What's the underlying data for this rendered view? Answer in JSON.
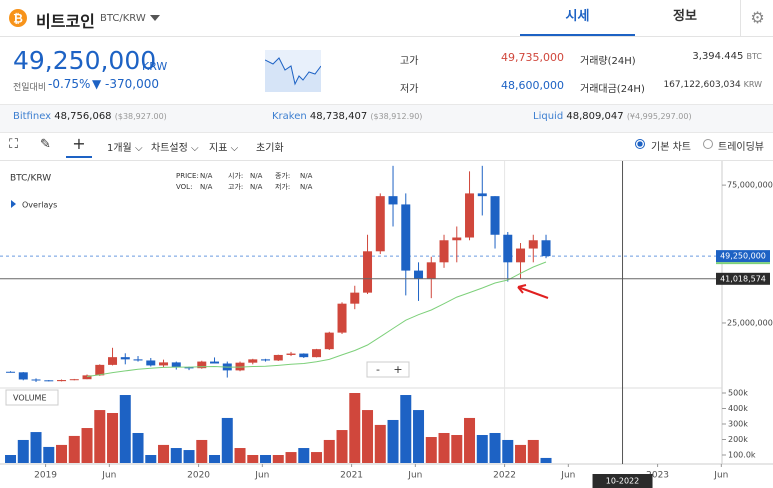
{
  "header": {
    "title": "비트코인",
    "pair": "BTC/KRW",
    "tabs": [
      "시세",
      "정보"
    ]
  },
  "price": {
    "value": "49,250,000",
    "unit": "KRW",
    "change_label": "전일대비",
    "change_pct": "-0.75%",
    "change_abs": "▼ -370,000"
  },
  "stats": [
    {
      "label": "고가",
      "value": "49,735,000"
    },
    {
      "label": "저가",
      "value": "48,600,000"
    },
    {
      "label": "거래량(24H)",
      "value": "3,394.445",
      "unit": "BTC"
    },
    {
      "label": "거래대금(24H)",
      "value": "167,122,603,034",
      "unit": "KRW"
    }
  ],
  "exchanges": [
    {
      "name": "Bitfinex",
      "price": "48,756,068",
      "alt": "($38,927.00)"
    },
    {
      "name": "Kraken",
      "price": "48,738,407",
      "alt": "($38,912.90)"
    },
    {
      "name": "Liquid",
      "price": "48,809,047",
      "alt": "(¥4,995,297.00)"
    }
  ],
  "toolbar": {
    "period": "1개월",
    "settings": "차트설정",
    "indicators": "지표",
    "reset": "초기화",
    "basic": "기본 차트",
    "tradingview": "트레이딩뷰"
  },
  "legend": {
    "symbol": "BTC/KRW",
    "overlays": "Overlays",
    "items": [
      "PRICE:",
      "N/A",
      "시가:",
      "N/A",
      "종가:",
      "N/A",
      "VOL:",
      "N/A",
      "고가:",
      "N/A",
      "저가:",
      "N/A"
    ],
    "volume": "VOLUME",
    "zoom": [
      "-",
      "+"
    ]
  },
  "chart_data": {
    "type": "candlestick",
    "up_color": "#d0473c",
    "down_color": "#1d62c4",
    "ma_color": "#7dd07a",
    "x": [
      "2018-10",
      "2018-11",
      "2018-12",
      "2019-01",
      "2019-02",
      "2019-03",
      "2019-04",
      "2019-05",
      "2019-06",
      "2019-07",
      "2019-08",
      "2019-09",
      "2019-10",
      "2019-11",
      "2019-12",
      "2020-01",
      "2020-02",
      "2020-03",
      "2020-04",
      "2020-05",
      "2020-06",
      "2020-07",
      "2020-08",
      "2020-09",
      "2020-10",
      "2020-11",
      "2020-12",
      "2021-01",
      "2021-02",
      "2021-03",
      "2021-04",
      "2021-05",
      "2021-06",
      "2021-07",
      "2021-08",
      "2021-09",
      "2021-10",
      "2021-11",
      "2021-12",
      "2022-01",
      "2022-02",
      "2022-03",
      "2022-04"
    ],
    "open": [
      7300000,
      7100000,
      4500000,
      4200000,
      3900000,
      4300000,
      4600000,
      6000000,
      9800000,
      12600000,
      11800000,
      11400000,
      9600000,
      10700000,
      8900000,
      8600000,
      11000000,
      10300000,
      7800000,
      10600000,
      11800000,
      11400000,
      13400000,
      13900000,
      12600000,
      15500000,
      21500000,
      32000000,
      36000000,
      51000000,
      71000000,
      68000000,
      44000000,
      41000000,
      47000000,
      55000000,
      56000000,
      72000000,
      71000000,
      57000000,
      47000000,
      52000000,
      55000000
    ],
    "high": [
      7500000,
      7200000,
      4900000,
      4300000,
      4500000,
      4700000,
      6300000,
      10000000,
      16000000,
      14000000,
      13000000,
      12300000,
      11700000,
      11000000,
      9200000,
      11300000,
      12500000,
      11000000,
      11000000,
      12000000,
      12000000,
      13500000,
      14500000,
      14000000,
      15600000,
      21800000,
      32500000,
      38500000,
      57000000,
      72000000,
      82000000,
      72000000,
      47000000,
      49000000,
      57000000,
      60000000,
      80000000,
      82000000,
      71000000,
      58000000,
      54000000,
      57000000,
      57000000
    ],
    "low": [
      7000000,
      4200000,
      3600000,
      3800000,
      3800000,
      4200000,
      4600000,
      5800000,
      9600000,
      10000000,
      11000000,
      9200000,
      8900000,
      8100000,
      7900000,
      8400000,
      10300000,
      5200000,
      7500000,
      10000000,
      11000000,
      11200000,
      13000000,
      12300000,
      12500000,
      15200000,
      21000000,
      30000000,
      35500000,
      50000000,
      60000000,
      35000000,
      33000000,
      34000000,
      45000000,
      47000000,
      55000000,
      64000000,
      52000000,
      40000000,
      41000000,
      47000000,
      48500000
    ],
    "close": [
      7100000,
      4500000,
      4200000,
      3900000,
      4300000,
      4600000,
      6000000,
      9800000,
      12600000,
      11800000,
      11400000,
      9600000,
      10700000,
      8900000,
      8600000,
      11000000,
      10300000,
      7800000,
      10600000,
      11800000,
      11400000,
      13400000,
      13900000,
      12600000,
      15500000,
      21500000,
      32000000,
      36000000,
      51000000,
      71000000,
      68000000,
      44000000,
      41000000,
      47000000,
      55000000,
      56000000,
      72000000,
      71000000,
      57000000,
      47000000,
      52000000,
      55000000,
      49250000
    ],
    "ma": [
      null,
      null,
      null,
      null,
      null,
      null,
      5600000,
      6200000,
      7000000,
      7600000,
      8200000,
      8600000,
      8900000,
      9000000,
      9000000,
      9100000,
      9200000,
      9000000,
      9000000,
      9200000,
      9300000,
      9600000,
      10000000,
      10300000,
      10900000,
      11800000,
      13400000,
      15000000,
      17000000,
      20000000,
      23000000,
      26000000,
      28000000,
      29700000,
      32000000,
      34400000,
      36000000,
      37700000,
      39500000,
      40600000,
      43000000,
      45300000,
      47100000
    ],
    "volume": [
      100000,
      197000,
      248000,
      152000,
      165000,
      223000,
      274000,
      390000,
      371000,
      487000,
      242000,
      100000,
      165000,
      145000,
      132000,
      197000,
      100000,
      339000,
      145000,
      100000,
      100000,
      100000,
      119000,
      145000,
      119000,
      197000,
      261000,
      500000,
      390000,
      294000,
      326000,
      487000,
      390000,
      216000,
      242000,
      229000,
      339000,
      229000,
      242000,
      197000,
      165000,
      197000,
      81000
    ],
    "ylim": [
      2500000,
      82300000
    ],
    "yticks": [
      {
        "value": 75000000,
        "label": "75,000,000"
      },
      {
        "value": 25000000,
        "label": "25,000,000"
      }
    ],
    "vlim": [
      0,
      500000
    ],
    "vticks": [
      {
        "value": 500000,
        "label": "500k"
      },
      {
        "value": 400000,
        "label": "400k"
      },
      {
        "value": 300000,
        "label": "300k"
      },
      {
        "value": 200000,
        "label": "200k"
      },
      {
        "value": 100000,
        "label": "100.0k"
      }
    ],
    "xticks": [
      {
        "value": "2019-01",
        "label": "2019"
      },
      {
        "value": "2019-06",
        "label": "Jun"
      },
      {
        "value": "2020-01",
        "label": "2020"
      },
      {
        "value": "2020-06",
        "label": "Jun"
      },
      {
        "value": "2021-01",
        "label": "2021"
      },
      {
        "value": "2021-06",
        "label": "Jun"
      },
      {
        "value": "2022-01",
        "label": "2022"
      },
      {
        "value": "2022-06",
        "label": "Jun"
      },
      {
        "value": "2023-01",
        "label": "2023"
      },
      {
        "value": "2023-06",
        "label": "Jun"
      }
    ],
    "last_price": {
      "value": 49250000,
      "label": "49,250,000"
    },
    "crosshair": {
      "x": "2022-10",
      "x_label": "10-2022",
      "y": 41018574,
      "y_label": "41,018,574"
    }
  }
}
